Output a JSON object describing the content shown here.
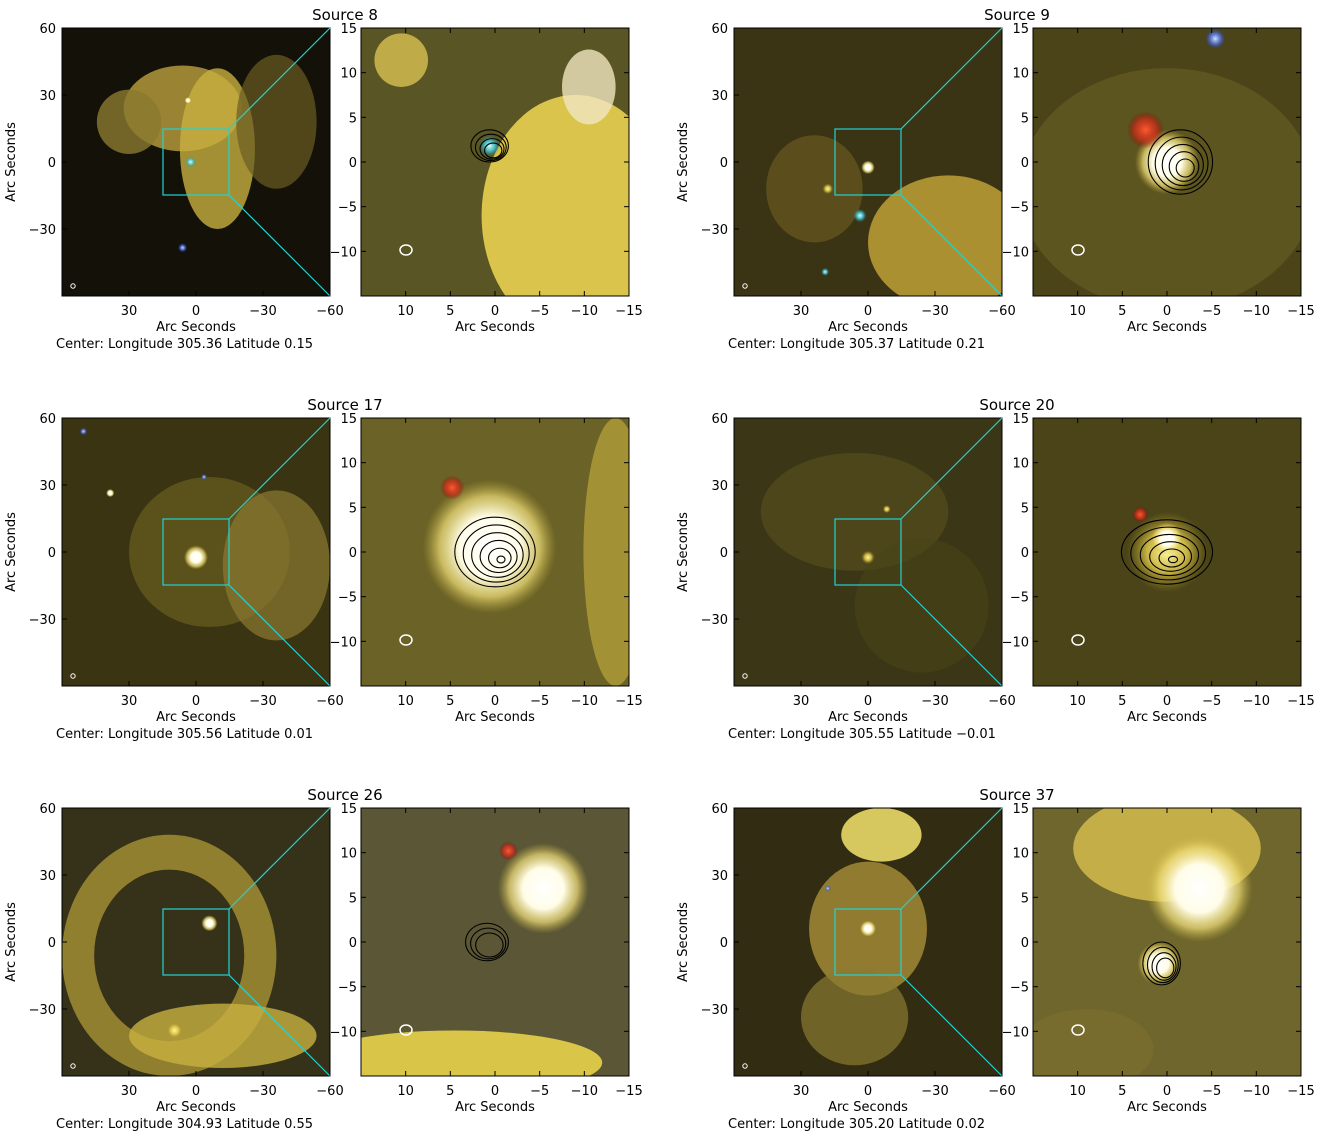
{
  "x_axis_label": "Arc Seconds",
  "y_axis_label": "Arc Seconds",
  "center_prefix": "Center:",
  "longitude_word": "Longitude",
  "latitude_word": "Latitude",
  "wide_x_ticks": [
    "30",
    "0",
    "−30",
    "−60"
  ],
  "wide_y_ticks": [
    "60",
    "30",
    "0",
    "−30"
  ],
  "zoom_x_ticks": [
    "10",
    "5",
    "0",
    "−5",
    "−10",
    "−15"
  ],
  "zoom_y_ticks": [
    "15",
    "10",
    "5",
    "0",
    "−5",
    "−10"
  ],
  "colors": {
    "zoom_box": "#22d3d3",
    "contour": "#000000",
    "beam": "#ffffff"
  },
  "panels": [
    {
      "title": "Source 8",
      "longitude": "305.36",
      "latitude": "0.15"
    },
    {
      "title": "Source 9",
      "longitude": "305.37",
      "latitude": "0.21"
    },
    {
      "title": "Source 17",
      "longitude": "305.56",
      "latitude": "0.01"
    },
    {
      "title": "Source 20",
      "longitude": "305.55",
      "latitude": "−0.01"
    },
    {
      "title": "Source 26",
      "longitude": "304.93",
      "latitude": "0.55"
    },
    {
      "title": "Source 37",
      "longitude": "305.20",
      "latitude": "0.02"
    }
  ]
}
